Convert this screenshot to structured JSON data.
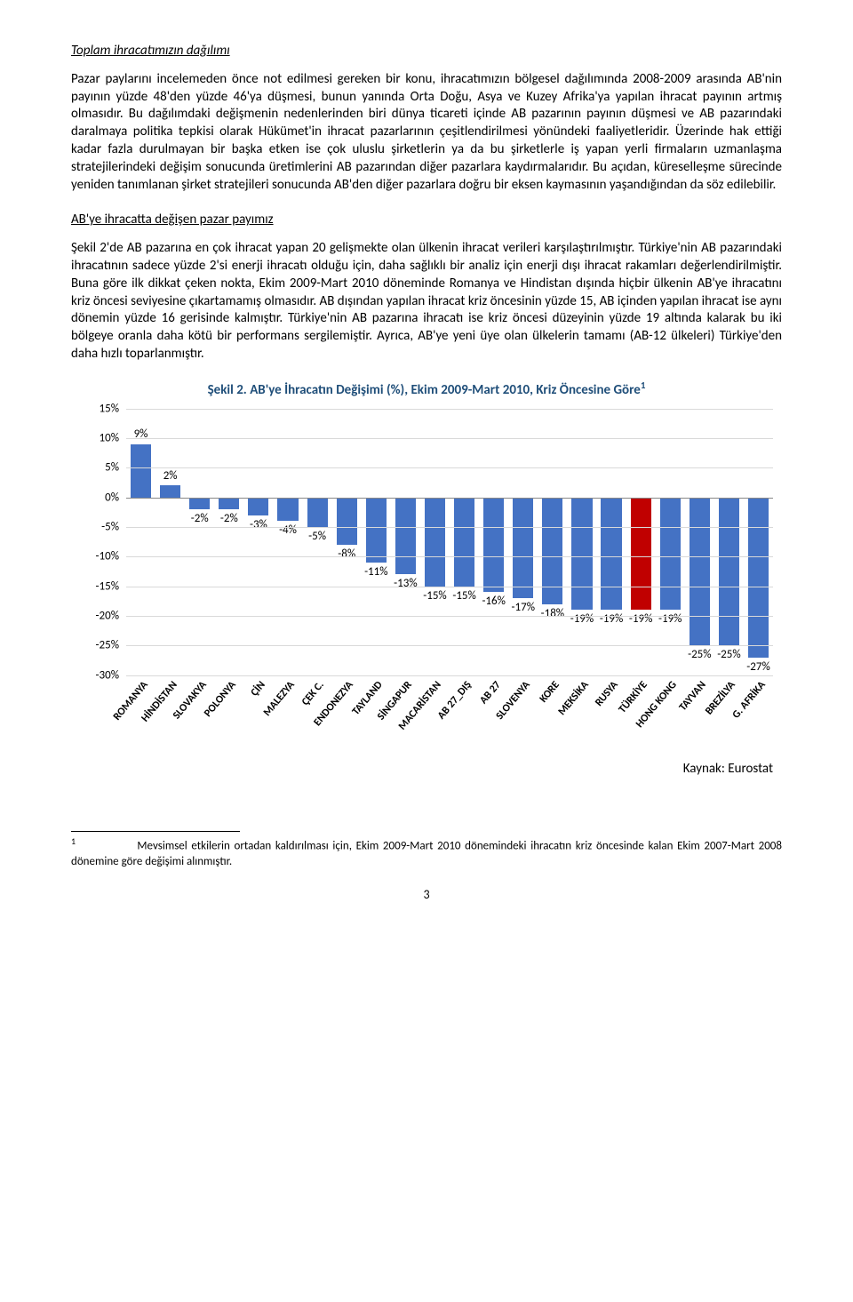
{
  "headings": {
    "h1": "Toplam ihracatımızın dağılımı",
    "h2": "AB'ye ihracatta değişen pazar payımız"
  },
  "paragraphs": {
    "p1": "Pazar paylarını incelemeden önce not edilmesi gereken bir konu, ihracatımızın bölgesel dağılımında 2008-2009 arasında AB'nin payının yüzde 48'den yüzde 46'ya düşmesi, bunun yanında Orta Doğu, Asya ve Kuzey Afrika'ya yapılan ihracat payının artmış olmasıdır. Bu dağılımdaki değişmenin nedenlerinden biri dünya ticareti içinde AB pazarının payının düşmesi ve AB pazarındaki daralmaya politika tepkisi olarak Hükümet'in ihracat pazarlarının çeşitlendirilmesi yönündeki faaliyetleridir. Üzerinde hak ettiği kadar fazla durulmayan bir başka etken ise çok uluslu şirketlerin ya da bu şirketlerle iş yapan yerli firmaların uzmanlaşma stratejilerindeki değişim sonucunda üretimlerini AB pazarından diğer pazarlara kaydırmalarıdır. Bu açıdan, küreselleşme sürecinde yeniden tanımlanan şirket stratejileri sonucunda AB'den diğer pazarlara doğru bir eksen kaymasının yaşandığından da söz edilebilir.",
    "p2": "Şekil 2'de AB pazarına en çok ihracat yapan 20 gelişmekte olan ülkenin ihracat verileri karşılaştırılmıştır. Türkiye'nin AB pazarındaki ihracatının sadece yüzde 2'si enerji ihracatı olduğu için, daha sağlıklı bir analiz için enerji dışı ihracat rakamları değerlendirilmiştir. Buna göre ilk dikkat çeken nokta, Ekim 2009-Mart 2010 döneminde Romanya ve Hindistan dışında hiçbir ülkenin AB'ye ihracatını kriz öncesi seviyesine çıkartamamış olmasıdır. AB dışından yapılan ihracat kriz öncesinin yüzde 15, AB içinden yapılan ihracat ise aynı dönemin yüzde 16 gerisinde kalmıştır. Türkiye'nin AB pazarına ihracatı ise kriz öncesi düzeyinin yüzde 19 altında kalarak bu iki bölgeye oranla daha kötü bir performans sergilemiştir. Ayrıca, AB'ye yeni üye olan ülkelerin tamamı (AB-12 ülkeleri) Türkiye'den daha hızlı toparlanmıştır."
  },
  "chart": {
    "title": "Şekil 2. AB'ye İhracatın Değişimi (%), Ekim 2009-Mart 2010, Kriz Öncesine Göre",
    "title_superscript": "1",
    "title_color": "#1f4e79",
    "title_fontsize": 15,
    "type": "bar",
    "ylim_min": -30,
    "ylim_max": 15,
    "ytick_step": 5,
    "ytick_suffix": "%",
    "bar_color_default": "#4472c4",
    "bar_color_highlight": "#c00000",
    "highlight_category": "TÜRKİYE",
    "grid_color": "#d9d9d9",
    "axis_color": "#888888",
    "label_fontsize": 13,
    "xlabel_fontsize": 12,
    "xlabel_fontweight": "bold",
    "xlabel_rotation_deg": -50,
    "categories": [
      "ROMANYA",
      "HİNDİSTAN",
      "SLOVAKYA",
      "POLONYA",
      "ÇİN",
      "MALEZYA",
      "ÇEK C.",
      "ENDONEZYA",
      "TAYLAND",
      "SİNGAPUR",
      "MACARİSTAN",
      "AB 27_DIŞ",
      "AB 27",
      "SLOVENYA",
      "KORE",
      "MEKSİKA",
      "RUSYA",
      "TÜRKİYE",
      "HONG KONG",
      "TAYVAN",
      "BREZİLYA",
      "G. AFRİKA"
    ],
    "values": [
      9,
      2,
      -2,
      -2,
      -3,
      -4,
      -5,
      -8,
      -11,
      -13,
      -15,
      -15,
      -16,
      -17,
      -18,
      -19,
      -19,
      -19,
      -19,
      -25,
      -25,
      -27
    ],
    "source_label": "Kaynak: Eurostat"
  },
  "footnote": {
    "mark": "1",
    "indent_label": "",
    "text": "Mevsimsel etkilerin ortadan kaldırılması için, Ekim 2009-Mart 2010 dönemindeki ihracatın kriz öncesinde kalan Ekim 2007-Mart 2008 dönemine göre değişimi alınmıştır."
  },
  "page_number": "3"
}
